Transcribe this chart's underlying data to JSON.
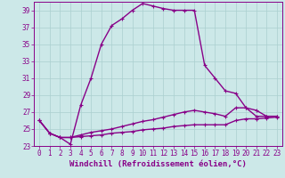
{
  "xlabel": "Windchill (Refroidissement éolien,°C)",
  "ylabel": "",
  "bg_color": "#cce8e8",
  "grid_color": "#aacfcf",
  "line_color": "#880088",
  "xlim": [
    -0.5,
    23.5
  ],
  "ylim": [
    23,
    40
  ],
  "xticks": [
    0,
    1,
    2,
    3,
    4,
    5,
    6,
    7,
    8,
    9,
    10,
    11,
    12,
    13,
    14,
    15,
    16,
    17,
    18,
    19,
    20,
    21,
    22,
    23
  ],
  "yticks": [
    23,
    25,
    27,
    29,
    31,
    33,
    35,
    37,
    39
  ],
  "line1_x": [
    0,
    1,
    2,
    3,
    4,
    5,
    6,
    7,
    8,
    9,
    10,
    11,
    12,
    13,
    14,
    15,
    16,
    17,
    18,
    19,
    20,
    21,
    22,
    23
  ],
  "line1_y": [
    26.0,
    24.5,
    24.0,
    23.2,
    27.8,
    31.0,
    35.0,
    37.2,
    38.0,
    39.0,
    39.8,
    39.5,
    39.2,
    39.0,
    39.0,
    39.0,
    32.5,
    31.0,
    29.5,
    29.2,
    27.5,
    26.5,
    26.5,
    26.5
  ],
  "line2_x": [
    0,
    1,
    2,
    3,
    4,
    5,
    6,
    7,
    8,
    9,
    10,
    11,
    12,
    13,
    14,
    15,
    16,
    17,
    18,
    19,
    20,
    21,
    22,
    23
  ],
  "line2_y": [
    26.0,
    24.5,
    24.0,
    24.0,
    24.3,
    24.6,
    24.8,
    25.0,
    25.3,
    25.6,
    25.9,
    26.1,
    26.4,
    26.7,
    27.0,
    27.2,
    27.0,
    26.8,
    26.5,
    27.5,
    27.5,
    27.2,
    26.5,
    26.5
  ],
  "line3_x": [
    0,
    1,
    2,
    3,
    4,
    5,
    6,
    7,
    8,
    9,
    10,
    11,
    12,
    13,
    14,
    15,
    16,
    17,
    18,
    19,
    20,
    21,
    22,
    23
  ],
  "line3_y": [
    26.0,
    24.5,
    24.0,
    24.0,
    24.1,
    24.2,
    24.3,
    24.5,
    24.6,
    24.7,
    24.9,
    25.0,
    25.1,
    25.3,
    25.4,
    25.5,
    25.5,
    25.5,
    25.5,
    26.0,
    26.2,
    26.2,
    26.3,
    26.4
  ],
  "marker": "+",
  "marker_size": 3,
  "line_width": 1.0,
  "tick_fontsize": 5.5,
  "label_fontsize": 6.5
}
